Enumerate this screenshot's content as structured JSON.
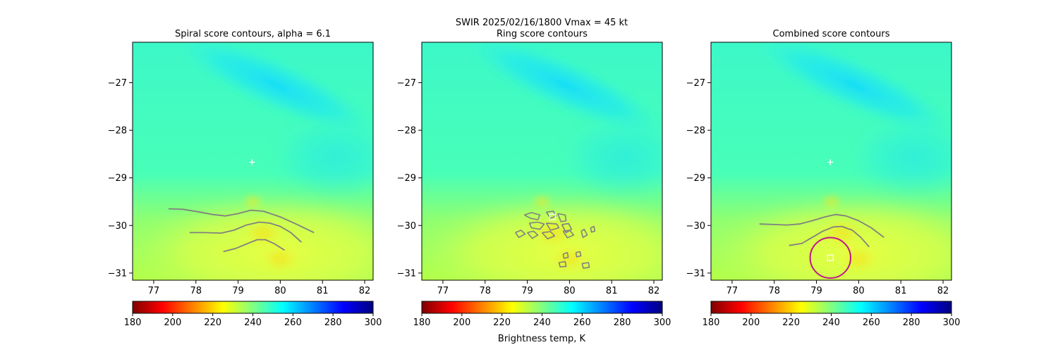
{
  "figure": {
    "suptitle_line1": "SWIR  2025/02/16/1800    Vmax = 45 kt",
    "colorbar_label": "Brightness temp, K"
  },
  "panels": [
    {
      "title": "Spiral score contours, alpha =  6.1"
    },
    {
      "title": "Ring score contours"
    },
    {
      "title": "Combined score contours"
    }
  ],
  "chart_data": {
    "type": "heatmap",
    "xlim": [
      76.5,
      82.2
    ],
    "ylim": [
      -31.15,
      -26.15
    ],
    "x_ticks": [
      77,
      78,
      79,
      80,
      81,
      82
    ],
    "y_ticks": [
      -27,
      -28,
      -29,
      -30,
      -31
    ],
    "colorbar": {
      "range": [
        180,
        300
      ],
      "ticks": [
        180,
        200,
        220,
        240,
        260,
        280,
        300
      ],
      "colormap": "jet_reversed",
      "colors": [
        "#800000",
        "#ff0000",
        "#ff8000",
        "#ffff00",
        "#80ff80",
        "#00ffff",
        "#0080ff",
        "#0000ff",
        "#000080"
      ]
    },
    "field_description_values_K": {
      "background_north": 248,
      "cold_band_northeast": 262,
      "south_warm_region": 226,
      "hot_spots": 215
    },
    "markers": {
      "plus_center": [
        79.33,
        -28.67
      ],
      "ring_square": [
        79.6,
        -29.82
      ],
      "combined_square": [
        79.33,
        -30.68
      ],
      "combined_circle": {
        "center": [
          79.33,
          -30.68
        ],
        "radius_deg": 0.48,
        "color": "#c0168a"
      }
    },
    "contour_color": "#808080",
    "spiral_contours": [
      [
        [
          77.35,
          -29.65
        ],
        [
          77.7,
          -29.66
        ],
        [
          78.1,
          -29.72
        ],
        [
          78.4,
          -29.77
        ],
        [
          78.7,
          -29.8
        ],
        [
          79.0,
          -29.75
        ],
        [
          79.3,
          -29.68
        ],
        [
          79.6,
          -29.7
        ],
        [
          80.0,
          -29.82
        ],
        [
          80.4,
          -29.98
        ],
        [
          80.8,
          -30.15
        ]
      ],
      [
        [
          77.85,
          -30.15
        ],
        [
          78.2,
          -30.15
        ],
        [
          78.6,
          -30.16
        ],
        [
          78.9,
          -30.1
        ],
        [
          79.2,
          -29.99
        ],
        [
          79.5,
          -29.93
        ],
        [
          79.75,
          -29.95
        ],
        [
          80.0,
          -30.02
        ],
        [
          80.25,
          -30.15
        ],
        [
          80.5,
          -30.35
        ]
      ],
      [
        [
          78.65,
          -30.55
        ],
        [
          78.95,
          -30.48
        ],
        [
          79.2,
          -30.39
        ],
        [
          79.45,
          -30.3
        ],
        [
          79.65,
          -30.3
        ],
        [
          79.85,
          -30.38
        ],
        [
          80.1,
          -30.52
        ]
      ]
    ],
    "combined_contours": [
      [
        [
          77.65,
          -29.97
        ],
        [
          78.0,
          -29.98
        ],
        [
          78.3,
          -29.99
        ],
        [
          78.6,
          -29.97
        ],
        [
          78.9,
          -29.9
        ],
        [
          79.2,
          -29.82
        ],
        [
          79.45,
          -29.77
        ],
        [
          79.7,
          -29.8
        ],
        [
          80.0,
          -29.9
        ],
        [
          80.3,
          -30.05
        ],
        [
          80.6,
          -30.25
        ]
      ],
      [
        [
          78.35,
          -30.42
        ],
        [
          78.65,
          -30.38
        ],
        [
          78.9,
          -30.25
        ],
        [
          79.15,
          -30.12
        ],
        [
          79.4,
          -30.03
        ],
        [
          79.6,
          -30.02
        ],
        [
          79.85,
          -30.1
        ],
        [
          80.05,
          -30.25
        ],
        [
          80.25,
          -30.45
        ]
      ]
    ],
    "ring_contours": [
      [
        [
          78.93,
          -29.78
        ],
        [
          79.1,
          -29.73
        ],
        [
          79.3,
          -29.78
        ],
        [
          79.25,
          -29.88
        ],
        [
          79.08,
          -29.85
        ],
        [
          78.93,
          -29.78
        ]
      ],
      [
        [
          79.45,
          -29.72
        ],
        [
          79.62,
          -29.7
        ],
        [
          79.68,
          -29.8
        ],
        [
          79.55,
          -29.85
        ],
        [
          79.45,
          -29.72
        ]
      ],
      [
        [
          79.72,
          -29.75
        ],
        [
          79.9,
          -29.78
        ],
        [
          79.92,
          -29.9
        ],
        [
          79.8,
          -29.92
        ],
        [
          79.72,
          -29.75
        ]
      ],
      [
        [
          79.05,
          -29.95
        ],
        [
          79.25,
          -29.93
        ],
        [
          79.4,
          -29.97
        ],
        [
          79.3,
          -30.08
        ],
        [
          79.1,
          -30.05
        ],
        [
          79.05,
          -29.95
        ]
      ],
      [
        [
          79.45,
          -29.95
        ],
        [
          79.7,
          -29.97
        ],
        [
          79.75,
          -30.05
        ],
        [
          79.55,
          -30.1
        ],
        [
          79.45,
          -29.95
        ]
      ],
      [
        [
          79.82,
          -29.98
        ],
        [
          79.98,
          -29.96
        ],
        [
          80.05,
          -30.08
        ],
        [
          79.92,
          -30.15
        ],
        [
          79.82,
          -29.98
        ]
      ],
      [
        [
          78.72,
          -30.15
        ],
        [
          78.85,
          -30.1
        ],
        [
          78.95,
          -30.18
        ],
        [
          78.8,
          -30.25
        ],
        [
          78.72,
          -30.15
        ]
      ],
      [
        [
          79.0,
          -30.15
        ],
        [
          79.15,
          -30.12
        ],
        [
          79.25,
          -30.2
        ],
        [
          79.12,
          -30.27
        ],
        [
          79.0,
          -30.15
        ]
      ],
      [
        [
          79.35,
          -30.15
        ],
        [
          79.55,
          -30.13
        ],
        [
          79.65,
          -30.22
        ],
        [
          79.48,
          -30.28
        ],
        [
          79.35,
          -30.15
        ]
      ],
      [
        [
          79.85,
          -30.12
        ],
        [
          80.0,
          -30.1
        ],
        [
          80.1,
          -30.2
        ],
        [
          79.95,
          -30.26
        ],
        [
          79.85,
          -30.12
        ]
      ],
      [
        [
          80.28,
          -30.12
        ],
        [
          80.35,
          -30.08
        ],
        [
          80.42,
          -30.2
        ],
        [
          80.32,
          -30.25
        ],
        [
          80.28,
          -30.12
        ]
      ],
      [
        [
          80.5,
          -30.05
        ],
        [
          80.58,
          -30.02
        ],
        [
          80.6,
          -30.12
        ],
        [
          80.52,
          -30.14
        ],
        [
          80.5,
          -30.05
        ]
      ],
      [
        [
          79.85,
          -30.6
        ],
        [
          79.95,
          -30.57
        ],
        [
          79.97,
          -30.67
        ],
        [
          79.87,
          -30.69
        ],
        [
          79.85,
          -30.6
        ]
      ],
      [
        [
          79.75,
          -30.78
        ],
        [
          79.9,
          -30.76
        ],
        [
          79.92,
          -30.86
        ],
        [
          79.78,
          -30.87
        ],
        [
          79.75,
          -30.78
        ]
      ],
      [
        [
          80.15,
          -30.57
        ],
        [
          80.25,
          -30.55
        ],
        [
          80.27,
          -30.64
        ],
        [
          80.17,
          -30.66
        ],
        [
          80.15,
          -30.57
        ]
      ],
      [
        [
          80.3,
          -30.8
        ],
        [
          80.45,
          -30.78
        ],
        [
          80.47,
          -30.88
        ],
        [
          80.33,
          -30.9
        ],
        [
          80.3,
          -30.8
        ]
      ]
    ]
  }
}
